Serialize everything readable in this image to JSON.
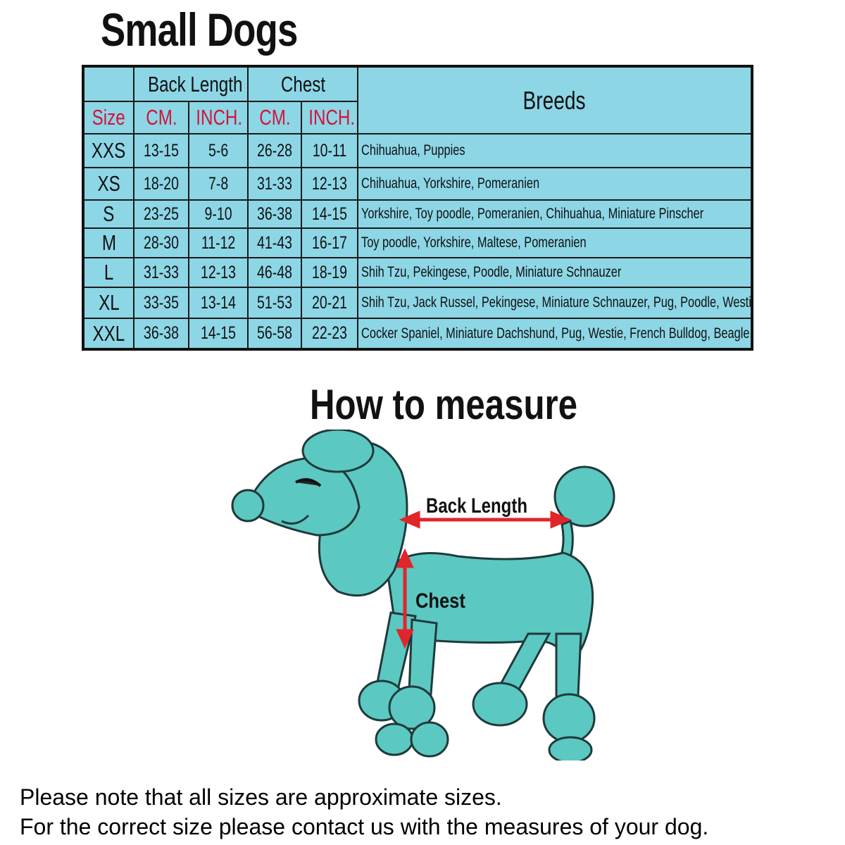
{
  "title": "Small Dogs",
  "table": {
    "group_headers": {
      "back_length": "Back Length",
      "chest": "Chest",
      "breeds": "Breeds"
    },
    "sub_headers": {
      "size": "Size",
      "back_cm": "CM.",
      "back_inch": "INCH.",
      "chest_cm": "CM.",
      "chest_inch": "INCH."
    },
    "rows": [
      {
        "size": "XXS",
        "back_cm": "13-15",
        "back_inch": "5-6",
        "chest_cm": "26-28",
        "chest_inch": "10-11",
        "breeds": "Chihuahua, Puppies"
      },
      {
        "size": "XS",
        "back_cm": "18-20",
        "back_inch": "7-8",
        "chest_cm": "31-33",
        "chest_inch": "12-13",
        "breeds": "Chihuahua, Yorkshire, Pomeranien"
      },
      {
        "size": "S",
        "back_cm": "23-25",
        "back_inch": "9-10",
        "chest_cm": "36-38",
        "chest_inch": "14-15",
        "breeds": "Yorkshire, Toy poodle, Pomeranien, Chihuahua, Miniature Pinscher"
      },
      {
        "size": "M",
        "back_cm": "28-30",
        "back_inch": "11-12",
        "chest_cm": "41-43",
        "chest_inch": "16-17",
        "breeds": "Toy poodle, Yorkshire, Maltese, Pomeranien"
      },
      {
        "size": "L",
        "back_cm": "31-33",
        "back_inch": "12-13",
        "chest_cm": "46-48",
        "chest_inch": "18-19",
        "breeds": "Shih Tzu, Pekingese, Poodle, Miniature Schnauzer"
      },
      {
        "size": "XL",
        "back_cm": "33-35",
        "back_inch": "13-14",
        "chest_cm": "51-53",
        "chest_inch": "20-21",
        "breeds": "Shih Tzu, Jack Russel, Pekingese, Miniature Schnauzer, Pug, Poodle, Westie"
      },
      {
        "size": "XXL",
        "back_cm": "36-38",
        "back_inch": "14-15",
        "chest_cm": "56-58",
        "chest_inch": "22-23",
        "breeds": "Cocker Spaniel, Miniature Dachshund, Pug, Westie, French Bulldog, Beagle"
      }
    ]
  },
  "measure": {
    "title": "How to measure",
    "back_length_label": "Back Length",
    "chest_label": "Chest"
  },
  "notes": [
    "Please note that all sizes are approximate sizes.",
    "For the correct size please contact us with the measures of your dog."
  ],
  "colors": {
    "table_bg": "#8dd6e6",
    "header_red": "#d2143a",
    "dog": "#5cc8c2",
    "arrow": "#e0262b"
  }
}
